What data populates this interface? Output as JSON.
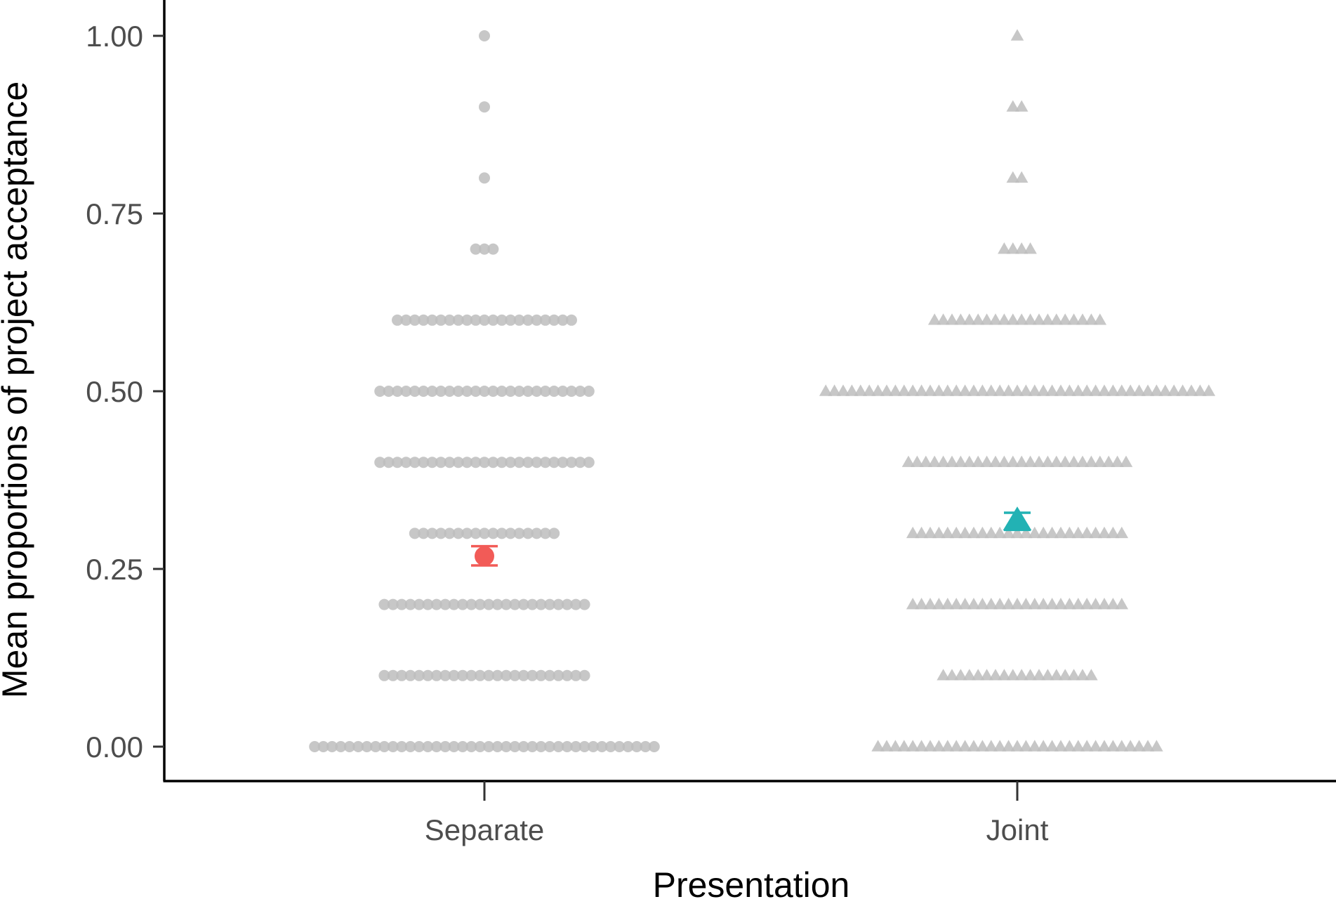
{
  "chart_data": {
    "type": "scatter",
    "subtype": "dot strip plot with group means and error bars",
    "xlabel": "Presentation",
    "ylabel": "Mean proportions of project acceptance",
    "categories": [
      "Separate",
      "Joint"
    ],
    "ylim": [
      -0.05,
      1.035
    ],
    "yticks": [
      0.0,
      0.25,
      0.5,
      0.75,
      1.0
    ],
    "ytick_labels": [
      "0.00",
      "0.25",
      "0.50",
      "0.75",
      "1.00"
    ],
    "grid": false,
    "legend": "none",
    "point_color": "#bdbdbd",
    "series": [
      {
        "category": "Separate",
        "marker": "circle",
        "mean_color": "#f25b57",
        "mean": 0.268,
        "error_low": 0.255,
        "error_high": 0.282,
        "value_counts": [
          {
            "y": 0.0,
            "n": 40
          },
          {
            "y": 0.1,
            "n": 24
          },
          {
            "y": 0.2,
            "n": 24
          },
          {
            "y": 0.3,
            "n": 17
          },
          {
            "y": 0.4,
            "n": 25
          },
          {
            "y": 0.5,
            "n": 25
          },
          {
            "y": 0.6,
            "n": 21
          },
          {
            "y": 0.7,
            "n": 3
          },
          {
            "y": 0.8,
            "n": 1
          },
          {
            "y": 0.9,
            "n": 1
          },
          {
            "y": 1.0,
            "n": 1
          }
        ]
      },
      {
        "category": "Joint",
        "marker": "triangle",
        "mean_color": "#22b2b4",
        "mean": 0.317,
        "error_low": 0.305,
        "error_high": 0.329,
        "value_counts": [
          {
            "y": 0.0,
            "n": 33
          },
          {
            "y": 0.1,
            "n": 18
          },
          {
            "y": 0.2,
            "n": 25
          },
          {
            "y": 0.3,
            "n": 25
          },
          {
            "y": 0.4,
            "n": 26
          },
          {
            "y": 0.5,
            "n": 45
          },
          {
            "y": 0.6,
            "n": 20
          },
          {
            "y": 0.7,
            "n": 4
          },
          {
            "y": 0.8,
            "n": 2
          },
          {
            "y": 0.9,
            "n": 2
          },
          {
            "y": 1.0,
            "n": 1
          }
        ]
      }
    ]
  }
}
